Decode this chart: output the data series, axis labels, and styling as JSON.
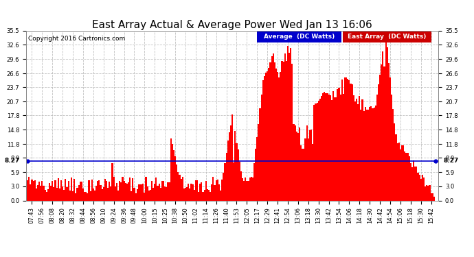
{
  "title": "East Array Actual & Average Power Wed Jan 13 16:06",
  "copyright": "Copyright 2016 Cartronics.com",
  "legend_avg": "Average  (DC Watts)",
  "legend_east": "East Array  (DC Watts)",
  "avg_value": 8.27,
  "bar_color": "#ff0000",
  "avg_line_color": "#0000cc",
  "background_color": "#ffffff",
  "grid_color": "#bbbbbb",
  "yticks": [
    0.0,
    3.0,
    5.9,
    8.9,
    11.8,
    14.8,
    17.8,
    20.7,
    23.7,
    26.6,
    29.6,
    32.6,
    35.5
  ],
  "ylim": [
    0.0,
    35.5
  ],
  "xtick_labels": [
    "07:43",
    "07:56",
    "08:08",
    "08:20",
    "08:32",
    "08:44",
    "08:56",
    "09:10",
    "09:24",
    "09:36",
    "09:48",
    "10:00",
    "10:15",
    "10:25",
    "10:38",
    "10:50",
    "11:02",
    "11:14",
    "11:26",
    "11:40",
    "11:53",
    "12:05",
    "12:17",
    "12:29",
    "12:41",
    "12:54",
    "13:06",
    "13:18",
    "13:30",
    "13:42",
    "13:54",
    "14:06",
    "14:18",
    "14:30",
    "14:42",
    "14:54",
    "15:06",
    "15:18",
    "15:30",
    "15:42"
  ],
  "title_fontsize": 11,
  "copyright_fontsize": 6.5,
  "axis_fontsize": 6,
  "legend_fontsize": 6.5
}
